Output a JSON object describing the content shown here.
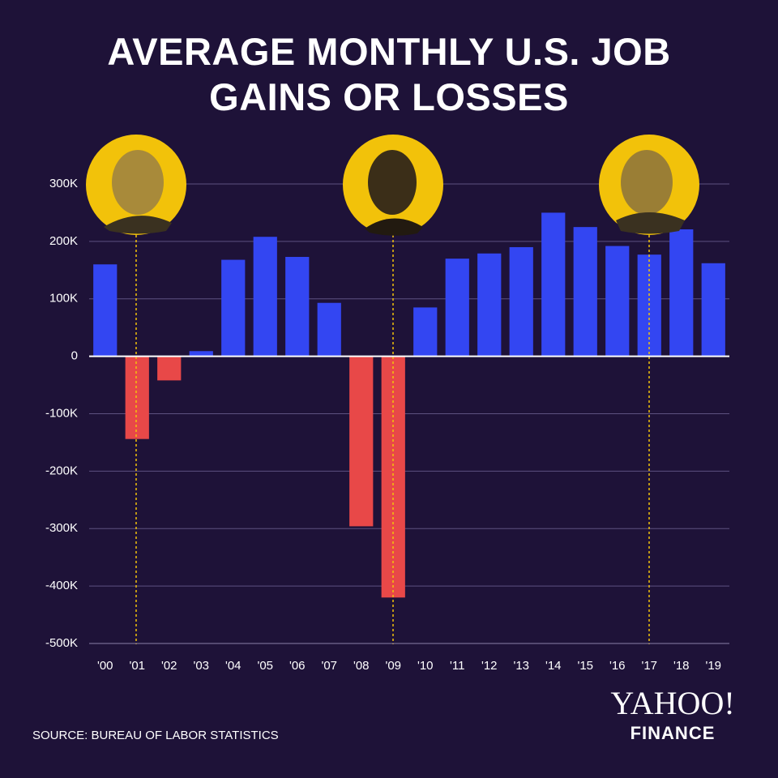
{
  "chart_data": {
    "type": "bar",
    "title": "AVERAGE MONTHLY U.S. JOB GAINS OR LOSSES",
    "categories": [
      "'00",
      "'01",
      "'02",
      "'03",
      "'04",
      "'05",
      "'06",
      "'07",
      "'08",
      "'09",
      "'10",
      "'11",
      "'12",
      "'13",
      "'14",
      "'15",
      "'16",
      "'17",
      "'18",
      "'19"
    ],
    "values": [
      160000,
      -144000,
      -42000,
      9000,
      168000,
      208000,
      173000,
      93000,
      -296000,
      -420000,
      85000,
      170000,
      179000,
      190000,
      250000,
      225000,
      192000,
      177000,
      221000,
      162000
    ],
    "color": "#3346f2",
    "negative_color": "#e84848",
    "ylim": [
      -500000,
      300000
    ],
    "yticks": [
      {
        "value": -500000,
        "label": "-500K"
      },
      {
        "value": -400000,
        "label": "-400K"
      },
      {
        "value": -300000,
        "label": "-300K"
      },
      {
        "value": -200000,
        "label": "-200K"
      },
      {
        "value": -100000,
        "label": "-100K"
      },
      0,
      {
        "value": 100000,
        "label": "100K"
      },
      {
        "value": 200000,
        "label": "200K"
      },
      {
        "value": 300000,
        "label": "300K"
      }
    ],
    "grid": true,
    "source": "SOURCE:  BUREAU OF LABOR STATISTICS",
    "logo": {
      "name": "YAHOO!",
      "sub": "FINANCE"
    }
  }
}
